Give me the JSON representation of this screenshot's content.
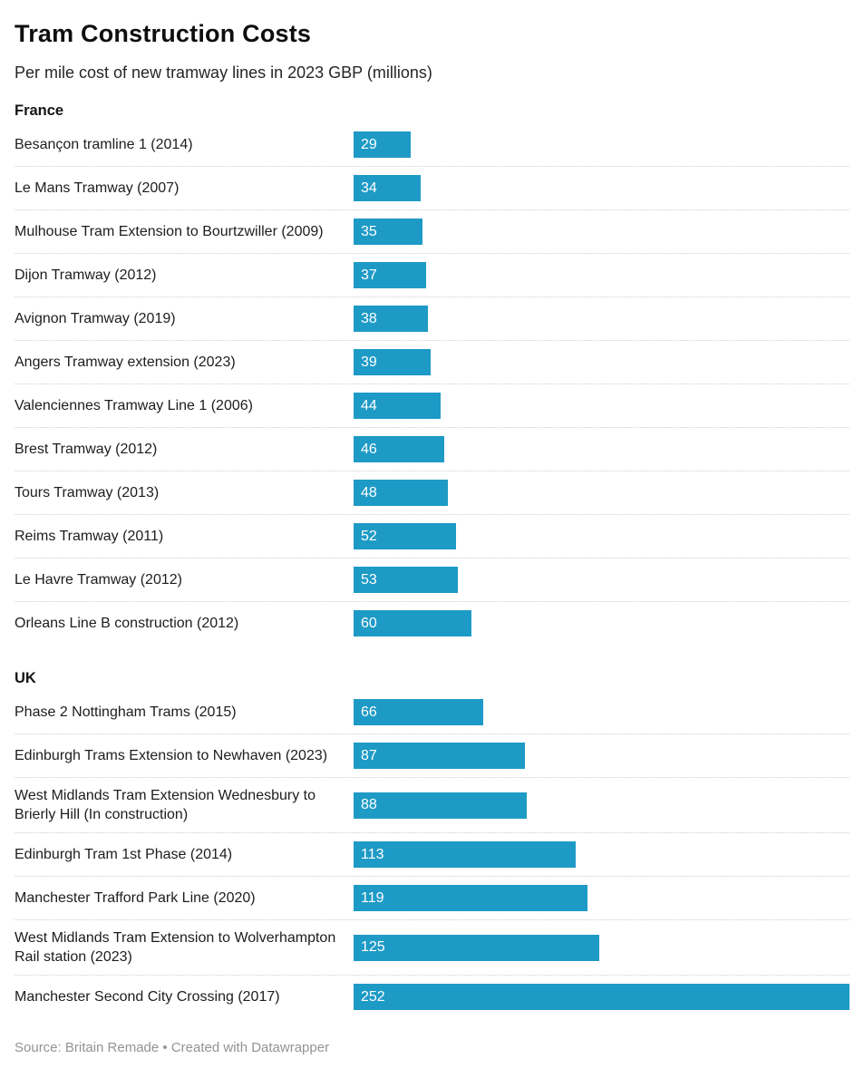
{
  "title": "Tram Construction Costs",
  "subtitle": "Per mile cost of new tramway lines in 2023 GBP (millions)",
  "footer": "Source: Britain Remade • Created with Datawrapper",
  "colors": {
    "bar": "#1e9ac6",
    "value_label": "#ffffff",
    "separator": "#cfcfcf",
    "footer_text": "#939393"
  },
  "chart_data": {
    "type": "bar",
    "orientation": "horizontal",
    "title": "Tram Construction Costs",
    "subtitle": "Per mile cost of new tramway lines in 2023 GBP (millions)",
    "value_unit": "2023 GBP millions per mile",
    "xlim": [
      0,
      252
    ],
    "max_value": 252,
    "value_labels": "inside-left",
    "groups": [
      {
        "label": "France",
        "rows": [
          {
            "label": "Besançon tramline 1 (2014)",
            "value": 29
          },
          {
            "label": "Le Mans Tramway (2007)",
            "value": 34
          },
          {
            "label": "Mulhouse Tram Extension to Bourtzwiller (2009)",
            "value": 35
          },
          {
            "label": "Dijon Tramway (2012)",
            "value": 37
          },
          {
            "label": "Avignon Tramway (2019)",
            "value": 38
          },
          {
            "label": "Angers Tramway extension (2023)",
            "value": 39
          },
          {
            "label": "Valenciennes Tramway Line 1 (2006)",
            "value": 44
          },
          {
            "label": "Brest Tramway (2012)",
            "value": 46
          },
          {
            "label": "Tours Tramway (2013)",
            "value": 48
          },
          {
            "label": "Reims Tramway (2011)",
            "value": 52
          },
          {
            "label": "Le Havre Tramway (2012)",
            "value": 53
          },
          {
            "label": "Orleans Line B construction (2012)",
            "value": 60
          }
        ]
      },
      {
        "label": "UK",
        "rows": [
          {
            "label": "Phase 2 Nottingham Trams (2015)",
            "value": 66
          },
          {
            "label": "Edinburgh Trams Extension to Newhaven (2023)",
            "value": 87
          },
          {
            "label": "West Midlands Tram Extension Wednesbury to Brierly Hill (In construction)",
            "value": 88
          },
          {
            "label": "Edinburgh Tram 1st Phase (2014)",
            "value": 113
          },
          {
            "label": "Manchester Trafford Park Line (2020)",
            "value": 119
          },
          {
            "label": "West Midlands Tram Extension to Wolverhampton Rail station (2023)",
            "value": 125
          },
          {
            "label": "Manchester Second City Crossing (2017)",
            "value": 252
          }
        ]
      }
    ]
  }
}
